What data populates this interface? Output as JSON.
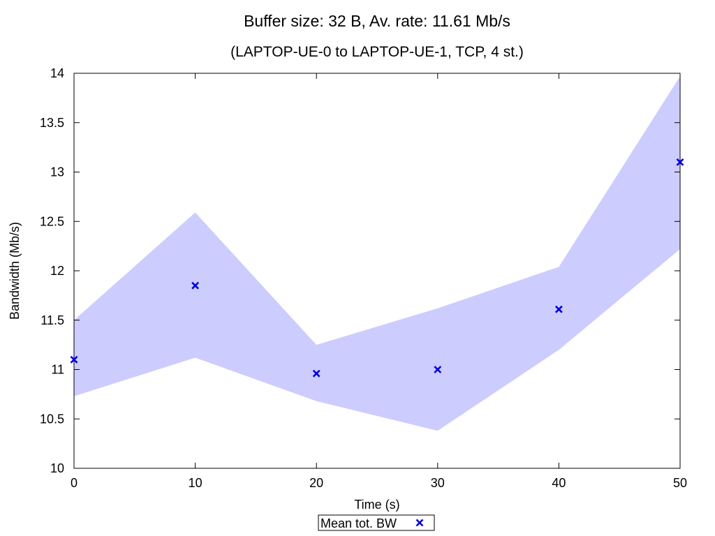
{
  "chart_data": {
    "type": "scatter",
    "title": "Buffer size: 32 B, Av. rate: 11.61 Mb/s",
    "subtitle": "(LAPTOP-UE-0 to LAPTOP-UE-1, TCP, 4 st.)",
    "xlabel": "Time (s)",
    "ylabel": "Bandwidth (Mb/s)",
    "xlim": [
      0,
      50
    ],
    "ylim": [
      10,
      14
    ],
    "xticks": [
      0,
      10,
      20,
      30,
      40,
      50
    ],
    "xtick_labels": [
      "0",
      "10",
      "20",
      "30",
      "40",
      "50"
    ],
    "yticks": [
      10,
      10.5,
      11,
      11.5,
      12,
      12.5,
      13,
      13.5,
      14
    ],
    "ytick_labels": [
      "10",
      "10.5",
      "11",
      "11.5",
      "12",
      "12.5",
      "13",
      "13.5",
      "14"
    ],
    "grid": false,
    "legend_position": "bottom-center",
    "series": [
      {
        "name": "Mean tot. BW",
        "marker": "x",
        "color": "#0000dd",
        "x": [
          0,
          10,
          20,
          30,
          40,
          50
        ],
        "y": [
          11.1,
          11.85,
          10.96,
          11.0,
          11.61,
          13.1
        ]
      }
    ],
    "band": {
      "color": "#ccccff",
      "x": [
        0,
        10,
        20,
        30,
        40,
        50
      ],
      "lower": [
        10.73,
        11.12,
        10.68,
        10.38,
        11.2,
        12.22
      ],
      "upper": [
        11.5,
        12.59,
        11.25,
        11.62,
        12.04,
        13.97
      ]
    }
  }
}
